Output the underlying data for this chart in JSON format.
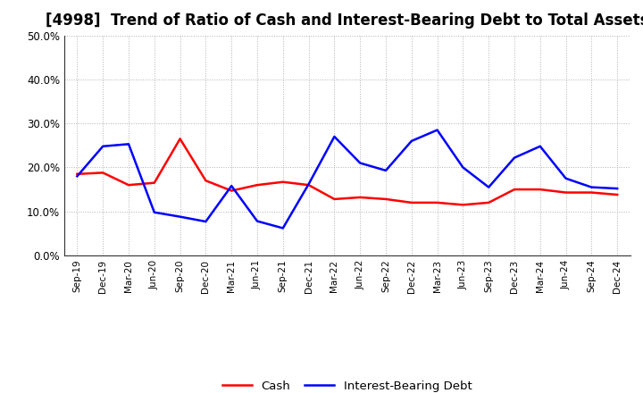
{
  "title": "[4998]  Trend of Ratio of Cash and Interest-Bearing Debt to Total Assets",
  "labels": [
    "Sep-19",
    "Dec-19",
    "Mar-20",
    "Jun-20",
    "Sep-20",
    "Dec-20",
    "Mar-21",
    "Jun-21",
    "Sep-21",
    "Dec-21",
    "Mar-22",
    "Jun-22",
    "Sep-22",
    "Dec-22",
    "Mar-23",
    "Jun-23",
    "Sep-23",
    "Dec-23",
    "Mar-24",
    "Jun-24",
    "Sep-24",
    "Dec-24"
  ],
  "cash": [
    0.185,
    0.188,
    0.16,
    0.165,
    0.265,
    0.17,
    0.147,
    0.16,
    0.167,
    0.16,
    0.128,
    0.132,
    0.128,
    0.12,
    0.12,
    0.115,
    0.12,
    0.15,
    0.15,
    0.143,
    0.143,
    0.138
  ],
  "interest_bearing_debt": [
    0.18,
    0.248,
    0.253,
    0.098,
    0.088,
    0.077,
    0.158,
    0.078,
    0.062,
    0.162,
    0.27,
    0.21,
    0.193,
    0.26,
    0.285,
    0.2,
    0.155,
    0.222,
    0.248,
    0.175,
    0.155,
    0.152
  ],
  "cash_color": "#ff0000",
  "ibd_color": "#0000ff",
  "ylim": [
    0.0,
    0.5
  ],
  "yticks": [
    0.0,
    0.1,
    0.2,
    0.3,
    0.4,
    0.5
  ],
  "bg_color": "#ffffff",
  "grid_color": "#aaaaaa",
  "title_fontsize": 12,
  "legend_cash": "Cash",
  "legend_ibd": "Interest-Bearing Debt",
  "line_width": 1.8
}
